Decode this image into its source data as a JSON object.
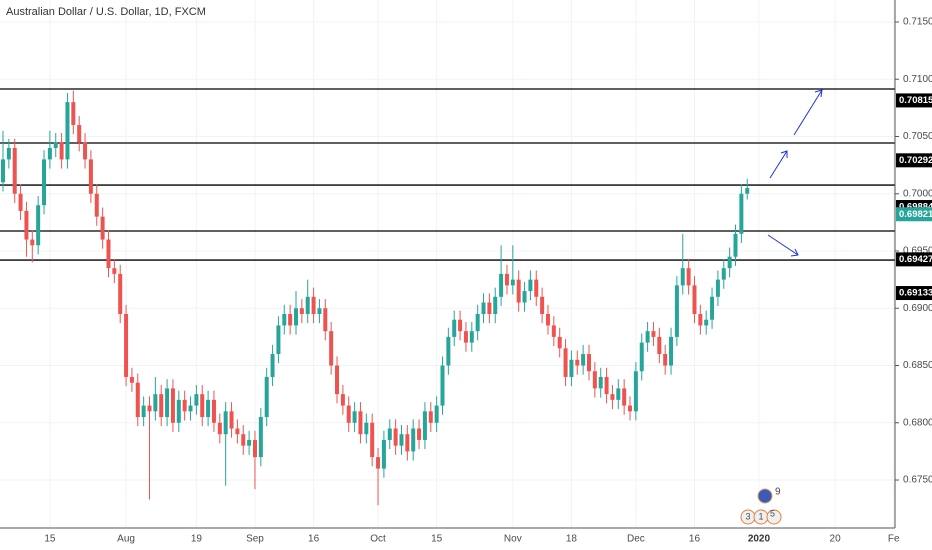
{
  "chart_data": {
    "type": "candlestick",
    "title": "Australian Dollar / U.S. Dollar, 1D, FXCM",
    "categories": [
      null,
      null,
      null,
      null,
      null,
      null,
      null,
      null,
      "15",
      null,
      null,
      null,
      null,
      null,
      null,
      null,
      null,
      null,
      null,
      null,
      null,
      "Aug",
      null,
      null,
      null,
      null,
      null,
      null,
      null,
      null,
      null,
      null,
      null,
      "19",
      null,
      null,
      null,
      null,
      null,
      null,
      null,
      null,
      null,
      "Sep",
      null,
      null,
      null,
      null,
      null,
      null,
      null,
      null,
      null,
      "16",
      null,
      null,
      null,
      null,
      null,
      null,
      null,
      null,
      null,
      null,
      "Oct",
      null,
      null,
      null,
      null,
      null,
      null,
      null,
      null,
      null,
      "15",
      null,
      null,
      null,
      null,
      null,
      null,
      null,
      null,
      null,
      null,
      null,
      null,
      "Nov",
      null,
      null,
      null,
      null,
      null,
      null,
      null,
      null,
      null,
      "18",
      null,
      null,
      null,
      null,
      null,
      null,
      null,
      null,
      null,
      null,
      "Dec",
      null,
      null,
      null,
      null,
      null,
      null,
      null,
      null,
      null,
      "16",
      null,
      null,
      null,
      null,
      null,
      null,
      null,
      null,
      null,
      null,
      "2020",
      null,
      null,
      null,
      null,
      null,
      null,
      null,
      null,
      null,
      null,
      null,
      null,
      "20",
      null,
      null,
      null,
      null,
      null,
      null,
      null,
      null,
      null,
      "Fe"
    ],
    "open": [
      0.701,
      0.703,
      0.704,
      0.7,
      0.6985,
      0.696,
      0.6955,
      0.699,
      0.703,
      0.704,
      0.7045,
      0.703,
      0.708,
      0.706,
      0.7045,
      0.703,
      0.7,
      0.698,
      0.696,
      0.6935,
      0.693,
      0.6895,
      0.684,
      0.6835,
      0.6805,
      0.6815,
      0.681,
      0.6825,
      0.6805,
      0.683,
      0.68,
      0.682,
      0.681,
      0.6815,
      0.6825,
      0.6805,
      0.682,
      0.68,
      0.679,
      0.681,
      0.6795,
      0.679,
      0.678,
      0.6785,
      0.677,
      0.6805,
      0.684,
      0.686,
      0.6885,
      0.6895,
      0.6885,
      0.69,
      0.6895,
      0.691,
      0.6895,
      0.69,
      0.688,
      0.685,
      0.6825,
      0.6815,
      0.68,
      0.681,
      0.679,
      0.68,
      0.677,
      0.676,
      0.6785,
      0.6795,
      0.678,
      0.679,
      0.6775,
      0.6795,
      0.6785,
      0.681,
      0.68,
      0.6815,
      0.685,
      0.6875,
      0.689,
      0.688,
      0.687,
      0.688,
      0.6895,
      0.6905,
      0.6895,
      0.691,
      0.693,
      0.692,
      0.6925,
      0.6905,
      0.6915,
      0.6925,
      0.691,
      0.6895,
      0.6885,
      0.6875,
      0.6865,
      0.684,
      0.6855,
      0.685,
      0.686,
      0.6845,
      0.683,
      0.684,
      0.6825,
      0.682,
      0.683,
      0.6815,
      0.681,
      0.6845,
      0.687,
      0.688,
      0.6875,
      0.686,
      0.685,
      0.6875,
      0.692,
      0.6935,
      0.692,
      0.6895,
      0.6885,
      0.689,
      0.691,
      0.6925,
      0.6935,
      0.6945,
      0.6965,
      0.7,
      null,
      null,
      null,
      null,
      null,
      null,
      null,
      null,
      null,
      null,
      null,
      null,
      null,
      null,
      null,
      null,
      null,
      null,
      null,
      null,
      null,
      null,
      null,
      null,
      null
    ],
    "high": [
      0.7055,
      0.7048,
      0.7048,
      0.7008,
      0.6993,
      0.6968,
      0.6998,
      0.7038,
      0.7055,
      0.7053,
      0.7053,
      0.7088,
      0.709,
      0.7068,
      0.7053,
      0.7038,
      0.7008,
      0.6988,
      0.6968,
      0.6943,
      0.6938,
      0.6903,
      0.6848,
      0.6843,
      0.6823,
      0.6823,
      0.684,
      0.6833,
      0.6838,
      0.6838,
      0.6828,
      0.6828,
      0.6823,
      0.6833,
      0.6833,
      0.6828,
      0.6828,
      0.6808,
      0.6818,
      0.6818,
      0.6803,
      0.6798,
      0.6793,
      0.6793,
      0.6813,
      0.6848,
      0.6868,
      0.6893,
      0.6903,
      0.6903,
      0.6915,
      0.6908,
      0.6925,
      0.6918,
      0.6908,
      0.6908,
      0.6888,
      0.6858,
      0.6833,
      0.6823,
      0.6818,
      0.6818,
      0.6808,
      0.6808,
      0.6778,
      0.6793,
      0.6803,
      0.6803,
      0.6798,
      0.6798,
      0.6803,
      0.6803,
      0.6818,
      0.6818,
      0.6823,
      0.6858,
      0.6883,
      0.6898,
      0.6898,
      0.6888,
      0.6888,
      0.6903,
      0.6913,
      0.6913,
      0.6918,
      0.6955,
      0.6938,
      0.6955,
      0.6933,
      0.6923,
      0.6933,
      0.6933,
      0.6918,
      0.6903,
      0.6893,
      0.6883,
      0.6873,
      0.6863,
      0.6863,
      0.6868,
      0.6868,
      0.6853,
      0.6848,
      0.6848,
      0.6833,
      0.6838,
      0.6838,
      0.6823,
      0.6853,
      0.6878,
      0.6888,
      0.6888,
      0.6883,
      0.6868,
      0.6883,
      0.6928,
      0.6965,
      0.6943,
      0.6928,
      0.6903,
      0.6898,
      0.6918,
      0.6933,
      0.6943,
      0.6953,
      0.6973,
      0.7008,
      0.7013,
      null,
      null,
      null,
      null,
      null,
      null,
      null,
      null,
      null,
      null,
      null,
      null,
      null,
      null,
      null,
      null,
      null,
      null,
      null,
      null,
      null,
      null,
      null,
      null,
      null
    ],
    "low": [
      0.7002,
      0.7022,
      0.6992,
      0.6977,
      0.6945,
      0.694,
      0.6947,
      0.6982,
      0.7022,
      0.7032,
      0.7022,
      0.7022,
      0.7052,
      0.7037,
      0.7022,
      0.6992,
      0.6972,
      0.6952,
      0.6927,
      0.6922,
      0.6887,
      0.6832,
      0.6827,
      0.6797,
      0.6797,
      0.6733,
      0.6802,
      0.6797,
      0.6797,
      0.6792,
      0.6792,
      0.6802,
      0.6802,
      0.6807,
      0.6797,
      0.6797,
      0.6792,
      0.6782,
      0.6745,
      0.6787,
      0.6782,
      0.6772,
      0.6772,
      0.6742,
      0.6762,
      0.6797,
      0.6832,
      0.6852,
      0.6877,
      0.6877,
      0.6877,
      0.6887,
      0.6887,
      0.6887,
      0.6887,
      0.6872,
      0.6842,
      0.6817,
      0.6807,
      0.6792,
      0.6792,
      0.6782,
      0.6782,
      0.6762,
      0.6728,
      0.6752,
      0.6777,
      0.6772,
      0.6772,
      0.6767,
      0.6767,
      0.6777,
      0.6777,
      0.6792,
      0.6792,
      0.6807,
      0.6842,
      0.6867,
      0.6872,
      0.6862,
      0.6862,
      0.6872,
      0.6887,
      0.6887,
      0.6887,
      0.6902,
      0.6912,
      0.6912,
      0.6897,
      0.6897,
      0.6907,
      0.6902,
      0.6887,
      0.6877,
      0.6867,
      0.6857,
      0.6832,
      0.6832,
      0.6842,
      0.6842,
      0.6837,
      0.6822,
      0.6822,
      0.6817,
      0.6812,
      0.6812,
      0.6807,
      0.6802,
      0.6802,
      0.6837,
      0.6862,
      0.6867,
      0.6852,
      0.6842,
      0.6842,
      0.6867,
      0.6912,
      0.6912,
      0.6887,
      0.6877,
      0.6877,
      0.6882,
      0.6902,
      0.6917,
      0.6927,
      0.6937,
      0.6957,
      0.6995,
      null,
      null,
      null,
      null,
      null,
      null,
      null,
      null,
      null,
      null,
      null,
      null,
      null,
      null,
      null,
      null,
      null,
      null,
      null,
      null,
      null,
      null,
      null,
      null,
      null
    ],
    "close": [
      0.703,
      0.704,
      0.7,
      0.6985,
      0.696,
      0.6955,
      0.699,
      0.703,
      0.704,
      0.7045,
      0.703,
      0.708,
      0.706,
      0.7045,
      0.703,
      0.7,
      0.698,
      0.696,
      0.6935,
      0.693,
      0.6895,
      0.684,
      0.6835,
      0.6805,
      0.6815,
      0.681,
      0.6825,
      0.6805,
      0.683,
      0.68,
      0.682,
      0.681,
      0.6815,
      0.6825,
      0.6805,
      0.682,
      0.68,
      0.679,
      0.681,
      0.6795,
      0.679,
      0.678,
      0.6785,
      0.677,
      0.6805,
      0.684,
      0.686,
      0.6885,
      0.6895,
      0.6885,
      0.69,
      0.6895,
      0.691,
      0.6895,
      0.69,
      0.688,
      0.685,
      0.6825,
      0.6815,
      0.68,
      0.681,
      0.679,
      0.68,
      0.677,
      0.676,
      0.6785,
      0.6795,
      0.678,
      0.679,
      0.6775,
      0.6795,
      0.6785,
      0.681,
      0.68,
      0.6815,
      0.685,
      0.6875,
      0.689,
      0.688,
      0.687,
      0.688,
      0.6895,
      0.6905,
      0.6895,
      0.691,
      0.693,
      0.692,
      0.6925,
      0.6905,
      0.6915,
      0.6925,
      0.691,
      0.6895,
      0.6885,
      0.6875,
      0.6865,
      0.684,
      0.6855,
      0.685,
      0.686,
      0.6845,
      0.683,
      0.684,
      0.6825,
      0.682,
      0.683,
      0.6815,
      0.681,
      0.6845,
      0.687,
      0.688,
      0.6875,
      0.686,
      0.685,
      0.6875,
      0.692,
      0.6935,
      0.692,
      0.6895,
      0.6885,
      0.689,
      0.691,
      0.6925,
      0.6935,
      0.6945,
      0.6965,
      0.7,
      0.7005,
      null,
      null,
      null,
      null,
      null,
      null,
      null,
      null,
      null,
      null,
      null,
      null,
      null,
      null,
      null,
      null,
      null,
      null,
      null,
      null,
      null,
      null,
      null,
      null,
      null
    ],
    "up_color": "#26a69a",
    "down_color": "#ef5350",
    "ylim": [
      0.67081,
      0.71692
    ],
    "yticks": [
      {
        "value": 0.675,
        "label": "0.67500"
      },
      {
        "value": 0.68,
        "label": "0.68000"
      },
      {
        "value": 0.685,
        "label": "0.68500"
      },
      {
        "value": 0.69,
        "label": "0.69000"
      },
      {
        "value": 0.695,
        "label": "0.69500"
      },
      {
        "value": 0.7,
        "label": "0.70000"
      },
      {
        "value": 0.705,
        "label": "0.70500"
      },
      {
        "value": 0.71,
        "label": "0.71000"
      },
      {
        "value": 0.715,
        "label": "0.71500"
      }
    ],
    "grid": true,
    "horizontal_lines": [
      0.70915,
      0.70443,
      0.70076,
      0.69675,
      0.69421
    ],
    "price_labels": [
      {
        "value": 0.70815,
        "color": "#000000"
      },
      {
        "value": 0.70292,
        "color": "#000000"
      },
      {
        "value": 0.69884,
        "color": "#000000"
      },
      {
        "value": 0.69821,
        "color": "#26a69a"
      },
      {
        "value": 0.69427,
        "color": "#000000"
      },
      {
        "value": 0.69133,
        "color": "#000000"
      }
    ],
    "events": [
      "9",
      "3",
      "1",
      "5"
    ]
  }
}
